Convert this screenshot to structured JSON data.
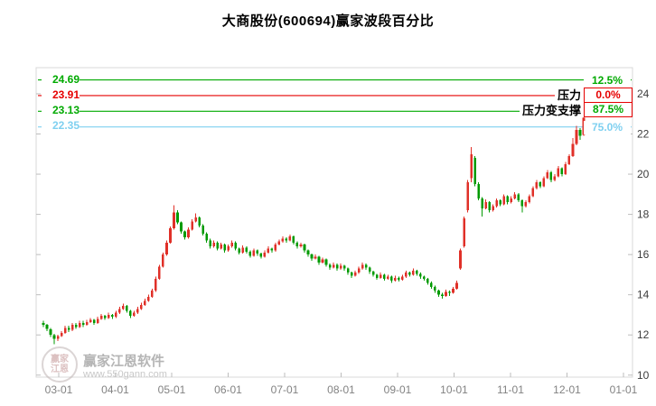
{
  "header": {
    "title": "大商股份(600694)赢家波段百分比"
  },
  "watermark": {
    "brand": "赢家江恩软件",
    "url": "www.550gann.com",
    "logo_text": "赢家江恩"
  },
  "chart_data": {
    "type": "candlestick",
    "title": "大商股份(600694)赢家波段百分比",
    "xlabel": "",
    "ylabel": "",
    "ylim": [
      9.9,
      25.3
    ],
    "y_ticks": [
      24,
      22,
      20,
      18,
      16,
      14,
      12,
      10
    ],
    "x_ticks": [
      "03-01",
      "04-01",
      "05-01",
      "06-01",
      "07-01",
      "08-01",
      "09-01",
      "10-01",
      "11-01",
      "12-01",
      "01-01"
    ],
    "grid": false,
    "up_color": "#e03028",
    "down_color": "#009a00",
    "frame_color": "#d8d8d8",
    "levels": [
      {
        "value": 24.69,
        "price_label": "24.69",
        "pct_label": "12.5%",
        "color": "#00aa00",
        "boxed": false,
        "annotation": ""
      },
      {
        "value": 23.91,
        "price_label": "23.91",
        "pct_label": "0.0%",
        "color": "#e60000",
        "boxed": true,
        "annotation": "压力"
      },
      {
        "value": 23.13,
        "price_label": "23.13",
        "pct_label": "87.5%",
        "color": "#00aa00",
        "boxed": true,
        "annotation": "压力变支撑"
      },
      {
        "value": 22.35,
        "price_label": "22.35",
        "pct_label": "75.0%",
        "color": "#7fd0f0",
        "boxed": false,
        "annotation": ""
      }
    ],
    "candles": [
      [
        12.6,
        12.7,
        12.4,
        12.5
      ],
      [
        12.5,
        12.55,
        12.2,
        12.3
      ],
      [
        12.28,
        12.35,
        11.9,
        12.0
      ],
      [
        11.98,
        12.05,
        11.55,
        11.8
      ],
      [
        11.8,
        12.0,
        11.7,
        11.95
      ],
      [
        11.95,
        12.2,
        11.9,
        12.1
      ],
      [
        12.1,
        12.45,
        12.05,
        12.35
      ],
      [
        12.35,
        12.45,
        12.15,
        12.25
      ],
      [
        12.25,
        12.6,
        12.2,
        12.5
      ],
      [
        12.5,
        12.6,
        12.3,
        12.4
      ],
      [
        12.4,
        12.7,
        12.35,
        12.6
      ],
      [
        12.6,
        12.7,
        12.4,
        12.5
      ],
      [
        12.5,
        12.75,
        12.45,
        12.65
      ],
      [
        12.65,
        12.85,
        12.6,
        12.75
      ],
      [
        12.75,
        12.8,
        12.5,
        12.6
      ],
      [
        12.6,
        12.9,
        12.55,
        12.8
      ],
      [
        12.8,
        13.05,
        12.75,
        12.95
      ],
      [
        12.95,
        13.0,
        12.75,
        12.85
      ],
      [
        12.85,
        13.1,
        12.8,
        13.0
      ],
      [
        13.0,
        13.05,
        12.8,
        12.9
      ],
      [
        12.9,
        13.2,
        12.85,
        13.1
      ],
      [
        13.1,
        13.4,
        13.05,
        13.3
      ],
      [
        13.3,
        13.55,
        13.25,
        13.45
      ],
      [
        13.45,
        13.5,
        13.1,
        13.2
      ],
      [
        13.2,
        13.25,
        12.85,
        12.95
      ],
      [
        12.95,
        13.2,
        12.9,
        13.1
      ],
      [
        13.1,
        13.4,
        13.05,
        13.3
      ],
      [
        13.3,
        13.6,
        13.25,
        13.5
      ],
      [
        13.5,
        13.8,
        13.45,
        13.7
      ],
      [
        13.7,
        14.0,
        13.65,
        13.9
      ],
      [
        13.9,
        14.3,
        13.85,
        14.2
      ],
      [
        14.2,
        14.9,
        14.15,
        14.8
      ],
      [
        14.8,
        15.5,
        14.75,
        15.4
      ],
      [
        15.4,
        16.1,
        15.35,
        16.0
      ],
      [
        16.0,
        16.7,
        15.95,
        16.6
      ],
      [
        16.6,
        17.4,
        16.55,
        17.3
      ],
      [
        17.3,
        18.45,
        17.25,
        18.1
      ],
      [
        18.1,
        18.2,
        17.5,
        17.6
      ],
      [
        17.6,
        17.65,
        17.05,
        17.15
      ],
      [
        17.15,
        17.2,
        16.75,
        16.85
      ],
      [
        16.85,
        17.35,
        16.8,
        17.25
      ],
      [
        17.25,
        17.75,
        17.2,
        17.65
      ],
      [
        17.65,
        18.05,
        17.6,
        17.85
      ],
      [
        17.85,
        17.9,
        17.35,
        17.45
      ],
      [
        17.45,
        17.5,
        16.95,
        17.05
      ],
      [
        17.05,
        17.1,
        16.6,
        16.7
      ],
      [
        16.7,
        16.8,
        16.3,
        16.4
      ],
      [
        16.4,
        16.7,
        16.35,
        16.6
      ],
      [
        16.6,
        16.65,
        16.2,
        16.3
      ],
      [
        16.3,
        16.6,
        16.25,
        16.5
      ],
      [
        16.5,
        16.55,
        16.1,
        16.2
      ],
      [
        16.2,
        16.5,
        16.15,
        16.4
      ],
      [
        16.4,
        16.7,
        16.35,
        16.6
      ],
      [
        16.6,
        16.65,
        16.2,
        16.3
      ],
      [
        16.3,
        16.35,
        16.0,
        16.1
      ],
      [
        16.1,
        16.45,
        16.05,
        16.35
      ],
      [
        16.35,
        16.4,
        16.05,
        16.15
      ],
      [
        16.15,
        16.2,
        15.85,
        15.95
      ],
      [
        15.95,
        16.3,
        15.9,
        16.2
      ],
      [
        16.2,
        16.25,
        15.95,
        16.05
      ],
      [
        16.05,
        16.1,
        15.8,
        15.9
      ],
      [
        15.9,
        16.2,
        15.85,
        16.1
      ],
      [
        16.1,
        16.4,
        16.05,
        16.3
      ],
      [
        16.3,
        16.35,
        16.1,
        16.2
      ],
      [
        16.2,
        16.6,
        16.15,
        16.5
      ],
      [
        16.5,
        16.75,
        16.45,
        16.65
      ],
      [
        16.65,
        16.9,
        16.6,
        16.8
      ],
      [
        16.8,
        16.85,
        16.6,
        16.7
      ],
      [
        16.7,
        17.0,
        16.65,
        16.9
      ],
      [
        16.9,
        16.95,
        16.5,
        16.6
      ],
      [
        16.6,
        16.65,
        16.3,
        16.4
      ],
      [
        16.4,
        16.6,
        16.35,
        16.5
      ],
      [
        16.5,
        16.55,
        16.1,
        16.2
      ],
      [
        16.2,
        16.25,
        15.9,
        16.0
      ],
      [
        16.0,
        16.05,
        15.7,
        15.8
      ],
      [
        15.8,
        16.0,
        15.75,
        15.9
      ],
      [
        15.9,
        15.95,
        15.5,
        15.6
      ],
      [
        15.6,
        15.85,
        15.55,
        15.75
      ],
      [
        15.75,
        15.8,
        15.4,
        15.5
      ],
      [
        15.5,
        15.55,
        15.25,
        15.35
      ],
      [
        15.35,
        15.6,
        15.3,
        15.5
      ],
      [
        15.5,
        15.55,
        15.2,
        15.3
      ],
      [
        15.3,
        15.55,
        15.25,
        15.45
      ],
      [
        15.45,
        15.5,
        15.2,
        15.3
      ],
      [
        15.3,
        15.35,
        15.0,
        15.1
      ],
      [
        15.1,
        15.15,
        14.85,
        14.95
      ],
      [
        14.95,
        15.2,
        14.9,
        15.1
      ],
      [
        15.1,
        15.4,
        15.05,
        15.3
      ],
      [
        15.3,
        15.6,
        15.25,
        15.5
      ],
      [
        15.5,
        15.55,
        15.25,
        15.35
      ],
      [
        15.35,
        15.4,
        15.05,
        15.15
      ],
      [
        15.15,
        15.2,
        14.9,
        15.0
      ],
      [
        15.0,
        15.05,
        14.75,
        14.85
      ],
      [
        14.85,
        15.1,
        14.8,
        15.0
      ],
      [
        15.0,
        15.05,
        14.7,
        14.8
      ],
      [
        14.8,
        15.0,
        14.75,
        14.9
      ],
      [
        14.9,
        14.95,
        14.6,
        14.7
      ],
      [
        14.7,
        14.95,
        14.65,
        14.85
      ],
      [
        14.85,
        14.9,
        14.65,
        14.75
      ],
      [
        14.75,
        15.0,
        14.7,
        14.9
      ],
      [
        14.9,
        15.2,
        14.85,
        15.1
      ],
      [
        15.1,
        15.15,
        14.9,
        15.0
      ],
      [
        15.0,
        15.3,
        14.95,
        15.2
      ],
      [
        15.2,
        15.25,
        14.95,
        15.05
      ],
      [
        15.05,
        15.1,
        14.8,
        14.9
      ],
      [
        14.9,
        14.95,
        14.7,
        14.8
      ],
      [
        14.8,
        14.85,
        14.5,
        14.6
      ],
      [
        14.6,
        14.65,
        14.3,
        14.4
      ],
      [
        14.4,
        14.45,
        14.1,
        14.2
      ],
      [
        14.2,
        14.25,
        13.9,
        14.0
      ],
      [
        14.0,
        14.1,
        13.8,
        13.95
      ],
      [
        13.95,
        14.25,
        13.9,
        14.15
      ],
      [
        14.15,
        14.2,
        13.95,
        14.1
      ],
      [
        14.1,
        14.4,
        14.05,
        14.3
      ],
      [
        14.3,
        14.7,
        14.25,
        14.6
      ],
      [
        15.3,
        16.3,
        15.25,
        16.2
      ],
      [
        16.4,
        17.9,
        16.35,
        17.8
      ],
      [
        18.2,
        19.7,
        18.1,
        19.6
      ],
      [
        19.8,
        21.35,
        19.6,
        21.0
      ],
      [
        20.8,
        20.9,
        19.4,
        19.5
      ],
      [
        19.5,
        19.6,
        18.7,
        18.8
      ],
      [
        18.8,
        18.85,
        17.9,
        18.3
      ],
      [
        18.3,
        18.75,
        18.25,
        18.6
      ],
      [
        18.6,
        18.65,
        18.1,
        18.2
      ],
      [
        18.2,
        18.5,
        18.15,
        18.4
      ],
      [
        18.4,
        18.8,
        18.35,
        18.7
      ],
      [
        18.7,
        18.75,
        18.4,
        18.5
      ],
      [
        18.5,
        19.0,
        18.45,
        18.9
      ],
      [
        18.9,
        18.95,
        18.5,
        18.6
      ],
      [
        18.6,
        18.9,
        18.55,
        18.8
      ],
      [
        18.8,
        19.1,
        18.75,
        19.0
      ],
      [
        19.0,
        19.05,
        18.6,
        18.7
      ],
      [
        18.7,
        18.75,
        18.1,
        18.4
      ],
      [
        18.4,
        18.7,
        18.35,
        18.6
      ],
      [
        18.6,
        19.0,
        18.55,
        18.9
      ],
      [
        18.9,
        19.4,
        18.85,
        19.3
      ],
      [
        19.3,
        19.7,
        19.25,
        19.6
      ],
      [
        19.6,
        19.65,
        19.3,
        19.4
      ],
      [
        19.4,
        19.9,
        19.35,
        19.8
      ],
      [
        19.8,
        20.2,
        19.75,
        20.1
      ],
      [
        20.1,
        20.15,
        19.6,
        19.7
      ],
      [
        19.7,
        20.0,
        19.65,
        19.9
      ],
      [
        19.9,
        20.4,
        19.85,
        20.3
      ],
      [
        20.3,
        20.35,
        19.9,
        20.0
      ],
      [
        20.0,
        20.6,
        19.95,
        20.5
      ],
      [
        20.5,
        21.0,
        20.45,
        20.9
      ],
      [
        20.9,
        21.8,
        20.85,
        21.5
      ],
      [
        21.5,
        22.4,
        21.45,
        22.2
      ],
      [
        22.2,
        22.3,
        21.7,
        21.9
      ],
      [
        21.95,
        23.25,
        21.9,
        22.8
      ]
    ]
  }
}
